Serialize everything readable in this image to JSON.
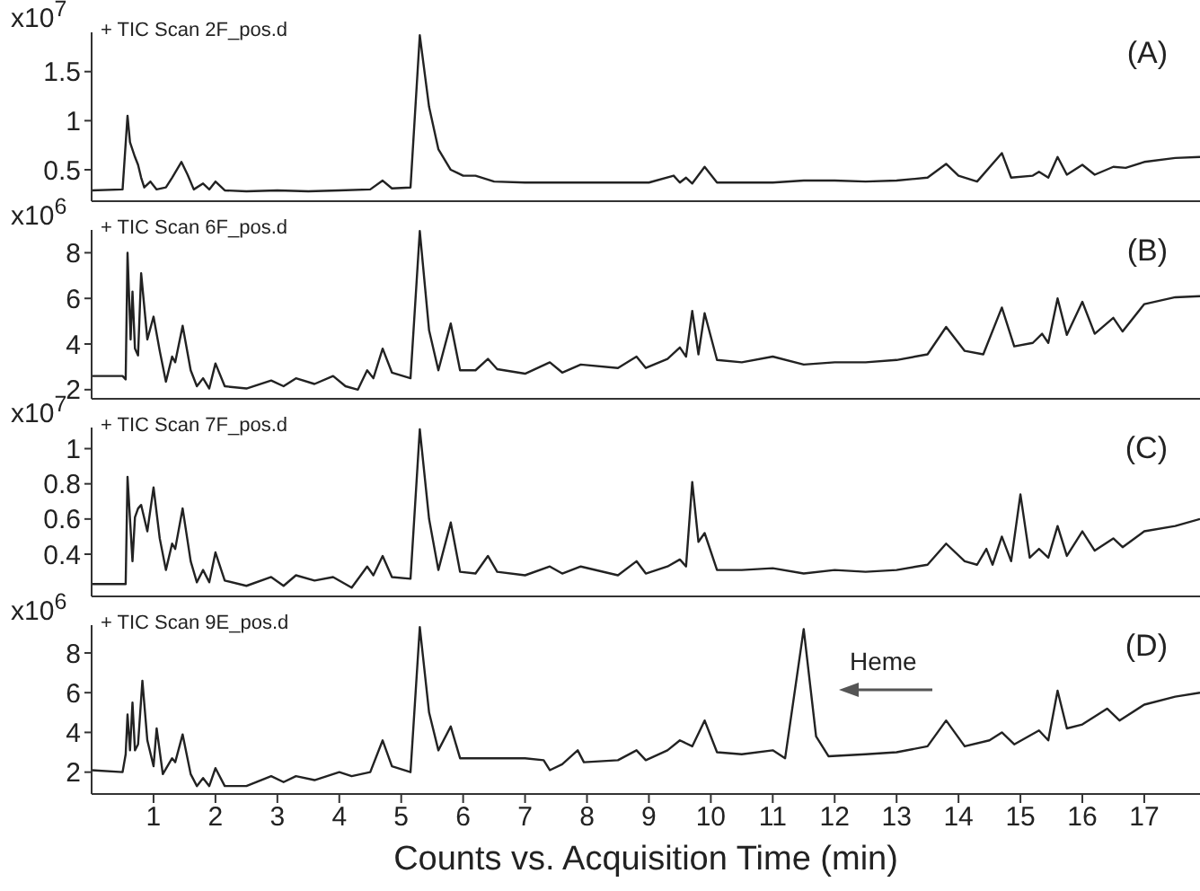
{
  "chart_data": [
    {
      "type": "line",
      "title": "(A)",
      "subtitle": "+ TIC Scan 2F_pos.d",
      "ylabel": "x10$^{7}$",
      "x": [
        0,
        0.5,
        0.58,
        0.62,
        0.7,
        0.75,
        0.8,
        0.85,
        0.95,
        1.05,
        1.2,
        1.3,
        1.45,
        1.55,
        1.65,
        1.8,
        1.9,
        2.0,
        2.15,
        2.5,
        3.0,
        3.5,
        4.0,
        4.5,
        4.7,
        4.85,
        5.15,
        5.3,
        5.45,
        5.6,
        5.8,
        6.0,
        6.2,
        6.5,
        7.0,
        7.5,
        8.0,
        8.5,
        9.0,
        9.4,
        9.5,
        9.6,
        9.7,
        9.9,
        10.1,
        10.5,
        11.0,
        11.5,
        12.0,
        12.5,
        13.0,
        13.5,
        13.8,
        14.0,
        14.3,
        14.7,
        14.85,
        15.2,
        15.3,
        15.45,
        15.6,
        15.75,
        16.0,
        16.2,
        16.5,
        16.7,
        17.0,
        17.5,
        17.9
      ],
      "series": [
        {
          "color": "#222222",
          "values": [
            0.29,
            0.3,
            1.05,
            0.78,
            0.63,
            0.55,
            0.42,
            0.32,
            0.38,
            0.3,
            0.32,
            0.42,
            0.58,
            0.45,
            0.3,
            0.36,
            0.3,
            0.38,
            0.29,
            0.28,
            0.29,
            0.28,
            0.29,
            0.3,
            0.39,
            0.31,
            0.32,
            1.87,
            1.14,
            0.71,
            0.5,
            0.44,
            0.44,
            0.38,
            0.37,
            0.37,
            0.37,
            0.37,
            0.37,
            0.44,
            0.37,
            0.42,
            0.36,
            0.53,
            0.37,
            0.37,
            0.37,
            0.39,
            0.39,
            0.38,
            0.39,
            0.42,
            0.56,
            0.44,
            0.38,
            0.67,
            0.42,
            0.44,
            0.48,
            0.42,
            0.63,
            0.45,
            0.55,
            0.45,
            0.53,
            0.52,
            0.58,
            0.62,
            0.63
          ]
        }
      ],
      "xlim": [
        0,
        17.9
      ],
      "xticks": [
        1,
        2,
        3,
        4,
        5,
        6,
        7,
        8,
        9,
        10,
        11,
        12,
        13,
        14,
        15,
        16,
        17
      ],
      "ylim": [
        0.18,
        1.9
      ],
      "yticks": [
        0.5,
        1,
        1.5
      ],
      "tick_labels": "y",
      "marker": "none",
      "line_style": "solid",
      "grid": false,
      "legend": false
    },
    {
      "type": "line",
      "title": "(B)",
      "subtitle": "+ TIC Scan 6F_pos.d",
      "ylabel": "x10$^{6}$",
      "x": [
        0,
        0.5,
        0.55,
        0.58,
        0.63,
        0.66,
        0.7,
        0.75,
        0.8,
        0.9,
        1.0,
        1.1,
        1.2,
        1.3,
        1.35,
        1.47,
        1.6,
        1.7,
        1.8,
        1.9,
        2.0,
        2.15,
        2.5,
        2.9,
        3.1,
        3.3,
        3.6,
        3.9,
        4.1,
        4.3,
        4.45,
        4.55,
        4.7,
        4.85,
        5.15,
        5.3,
        5.45,
        5.6,
        5.8,
        5.95,
        6.2,
        6.4,
        6.55,
        7.0,
        7.4,
        7.6,
        7.9,
        8.5,
        8.8,
        8.95,
        9.3,
        9.5,
        9.6,
        9.7,
        9.8,
        9.9,
        10.1,
        10.5,
        11.0,
        11.5,
        12.0,
        12.5,
        13.0,
        13.5,
        13.8,
        14.1,
        14.4,
        14.7,
        14.9,
        15.2,
        15.35,
        15.45,
        15.6,
        15.75,
        16.0,
        16.2,
        16.5,
        16.65,
        17.0,
        17.5,
        17.9
      ],
      "series": [
        {
          "color": "#222222",
          "values": [
            2.6,
            2.6,
            2.45,
            8.0,
            4.2,
            6.3,
            3.8,
            3.5,
            7.1,
            4.2,
            5.2,
            3.7,
            2.35,
            3.45,
            3.2,
            4.8,
            2.85,
            2.15,
            2.5,
            2.05,
            3.15,
            2.15,
            2.05,
            2.4,
            2.15,
            2.5,
            2.25,
            2.6,
            2.15,
            2.0,
            2.85,
            2.5,
            3.8,
            2.75,
            2.5,
            8.95,
            4.6,
            2.85,
            4.9,
            2.85,
            2.85,
            3.35,
            2.9,
            2.7,
            3.2,
            2.75,
            3.1,
            2.95,
            3.45,
            2.95,
            3.35,
            3.85,
            3.45,
            5.45,
            3.55,
            5.35,
            3.3,
            3.2,
            3.45,
            3.1,
            3.2,
            3.2,
            3.3,
            3.55,
            4.75,
            3.7,
            3.55,
            5.6,
            3.9,
            4.05,
            4.45,
            4.05,
            6.0,
            4.4,
            5.85,
            4.45,
            5.15,
            4.55,
            5.75,
            6.05,
            6.1
          ]
        }
      ],
      "xlim": [
        0,
        17.9
      ],
      "xticks": [
        1,
        2,
        3,
        4,
        5,
        6,
        7,
        8,
        9,
        10,
        11,
        12,
        13,
        14,
        15,
        16,
        17
      ],
      "ylim": [
        1.6,
        9
      ],
      "yticks": [
        2,
        4,
        6,
        8
      ],
      "tick_labels": "y",
      "marker": "none",
      "line_style": "solid",
      "grid": false,
      "legend": false
    },
    {
      "type": "line",
      "title": "(C)",
      "subtitle": "+ TIC Scan 7F_pos.d",
      "ylabel": "x10$^{7}$",
      "x": [
        0,
        0.55,
        0.58,
        0.62,
        0.66,
        0.7,
        0.75,
        0.8,
        0.9,
        1.0,
        1.1,
        1.2,
        1.3,
        1.35,
        1.47,
        1.6,
        1.7,
        1.8,
        1.9,
        2.0,
        2.15,
        2.5,
        2.9,
        3.1,
        3.3,
        3.6,
        3.9,
        4.2,
        4.45,
        4.55,
        4.7,
        4.85,
        5.15,
        5.3,
        5.45,
        5.6,
        5.8,
        5.95,
        6.2,
        6.4,
        6.55,
        7.0,
        7.4,
        7.6,
        7.9,
        8.5,
        8.8,
        8.95,
        9.3,
        9.5,
        9.6,
        9.7,
        9.8,
        9.9,
        10.1,
        10.5,
        11.0,
        11.5,
        12.0,
        12.5,
        13.0,
        13.5,
        13.8,
        14.1,
        14.3,
        14.45,
        14.55,
        14.7,
        14.85,
        15.0,
        15.15,
        15.3,
        15.45,
        15.6,
        15.75,
        16.0,
        16.2,
        16.5,
        16.65,
        17.0,
        17.5,
        17.9
      ],
      "series": [
        {
          "color": "#222222",
          "values": [
            0.23,
            0.23,
            0.84,
            0.6,
            0.36,
            0.61,
            0.66,
            0.68,
            0.53,
            0.78,
            0.49,
            0.31,
            0.46,
            0.43,
            0.66,
            0.36,
            0.24,
            0.31,
            0.24,
            0.41,
            0.25,
            0.22,
            0.27,
            0.22,
            0.28,
            0.25,
            0.27,
            0.21,
            0.33,
            0.28,
            0.39,
            0.27,
            0.26,
            1.11,
            0.6,
            0.31,
            0.58,
            0.3,
            0.29,
            0.39,
            0.3,
            0.28,
            0.33,
            0.29,
            0.33,
            0.28,
            0.36,
            0.29,
            0.33,
            0.37,
            0.33,
            0.81,
            0.47,
            0.52,
            0.31,
            0.31,
            0.32,
            0.29,
            0.31,
            0.3,
            0.31,
            0.34,
            0.46,
            0.36,
            0.34,
            0.43,
            0.34,
            0.5,
            0.36,
            0.74,
            0.38,
            0.43,
            0.38,
            0.56,
            0.39,
            0.53,
            0.42,
            0.49,
            0.44,
            0.53,
            0.56,
            0.6
          ]
        }
      ],
      "xlim": [
        0,
        17.9
      ],
      "xticks": [
        1,
        2,
        3,
        4,
        5,
        6,
        7,
        8,
        9,
        10,
        11,
        12,
        13,
        14,
        15,
        16,
        17
      ],
      "ylim": [
        0.16,
        1.12
      ],
      "yticks": [
        0.4,
        0.6,
        0.8,
        1
      ],
      "tick_labels": "y",
      "marker": "none",
      "line_style": "solid",
      "grid": false,
      "legend": false
    },
    {
      "type": "line",
      "title": "(D)",
      "subtitle": "+ TIC Scan 9E_pos.d",
      "ylabel": "x10$^{6}$",
      "xlabel": "Counts vs. Acquisition Time (min)",
      "annotations": [
        "Heme"
      ],
      "x": [
        0,
        0.5,
        0.55,
        0.58,
        0.62,
        0.66,
        0.7,
        0.75,
        0.82,
        0.9,
        1.0,
        1.05,
        1.15,
        1.3,
        1.35,
        1.47,
        1.6,
        1.7,
        1.8,
        1.9,
        2.0,
        2.15,
        2.5,
        2.9,
        3.1,
        3.3,
        3.6,
        4.0,
        4.2,
        4.5,
        4.7,
        4.85,
        5.15,
        5.3,
        5.45,
        5.6,
        5.8,
        5.95,
        6.2,
        6.5,
        7.0,
        7.3,
        7.4,
        7.6,
        7.85,
        7.95,
        8.5,
        8.8,
        8.95,
        9.3,
        9.5,
        9.7,
        9.9,
        10.1,
        10.5,
        11.0,
        11.2,
        11.5,
        11.7,
        11.9,
        12.5,
        13.0,
        13.5,
        13.8,
        14.1,
        14.5,
        14.7,
        14.9,
        15.3,
        15.45,
        15.6,
        15.75,
        16.0,
        16.4,
        16.6,
        17.0,
        17.5,
        17.9
      ],
      "series": [
        {
          "color": "#222222",
          "values": [
            2.1,
            2.0,
            2.9,
            4.9,
            3.1,
            5.5,
            3.1,
            3.4,
            6.6,
            3.6,
            2.3,
            4.2,
            1.9,
            2.7,
            2.5,
            3.9,
            1.9,
            1.3,
            1.7,
            1.3,
            2.2,
            1.3,
            1.3,
            1.8,
            1.5,
            1.8,
            1.6,
            2.0,
            1.8,
            2.0,
            3.6,
            2.3,
            2.0,
            9.3,
            5.0,
            3.1,
            4.3,
            2.7,
            2.7,
            2.7,
            2.7,
            2.6,
            2.1,
            2.4,
            3.1,
            2.5,
            2.6,
            3.1,
            2.6,
            3.1,
            3.6,
            3.3,
            4.6,
            3.0,
            2.9,
            3.1,
            2.7,
            9.2,
            3.8,
            2.8,
            2.9,
            3.0,
            3.3,
            4.6,
            3.3,
            3.6,
            4.0,
            3.4,
            4.1,
            3.6,
            6.1,
            4.2,
            4.4,
            5.2,
            4.6,
            5.4,
            5.8,
            6.0
          ]
        }
      ],
      "xlim": [
        0,
        17.9
      ],
      "xticks": [
        1,
        2,
        3,
        4,
        5,
        6,
        7,
        8,
        9,
        10,
        11,
        12,
        13,
        14,
        15,
        16,
        17
      ],
      "ylim": [
        0.9,
        9.4
      ],
      "yticks": [
        2,
        4,
        6,
        8
      ],
      "marker": "none",
      "line_style": "solid",
      "grid": false,
      "legend": false
    }
  ]
}
